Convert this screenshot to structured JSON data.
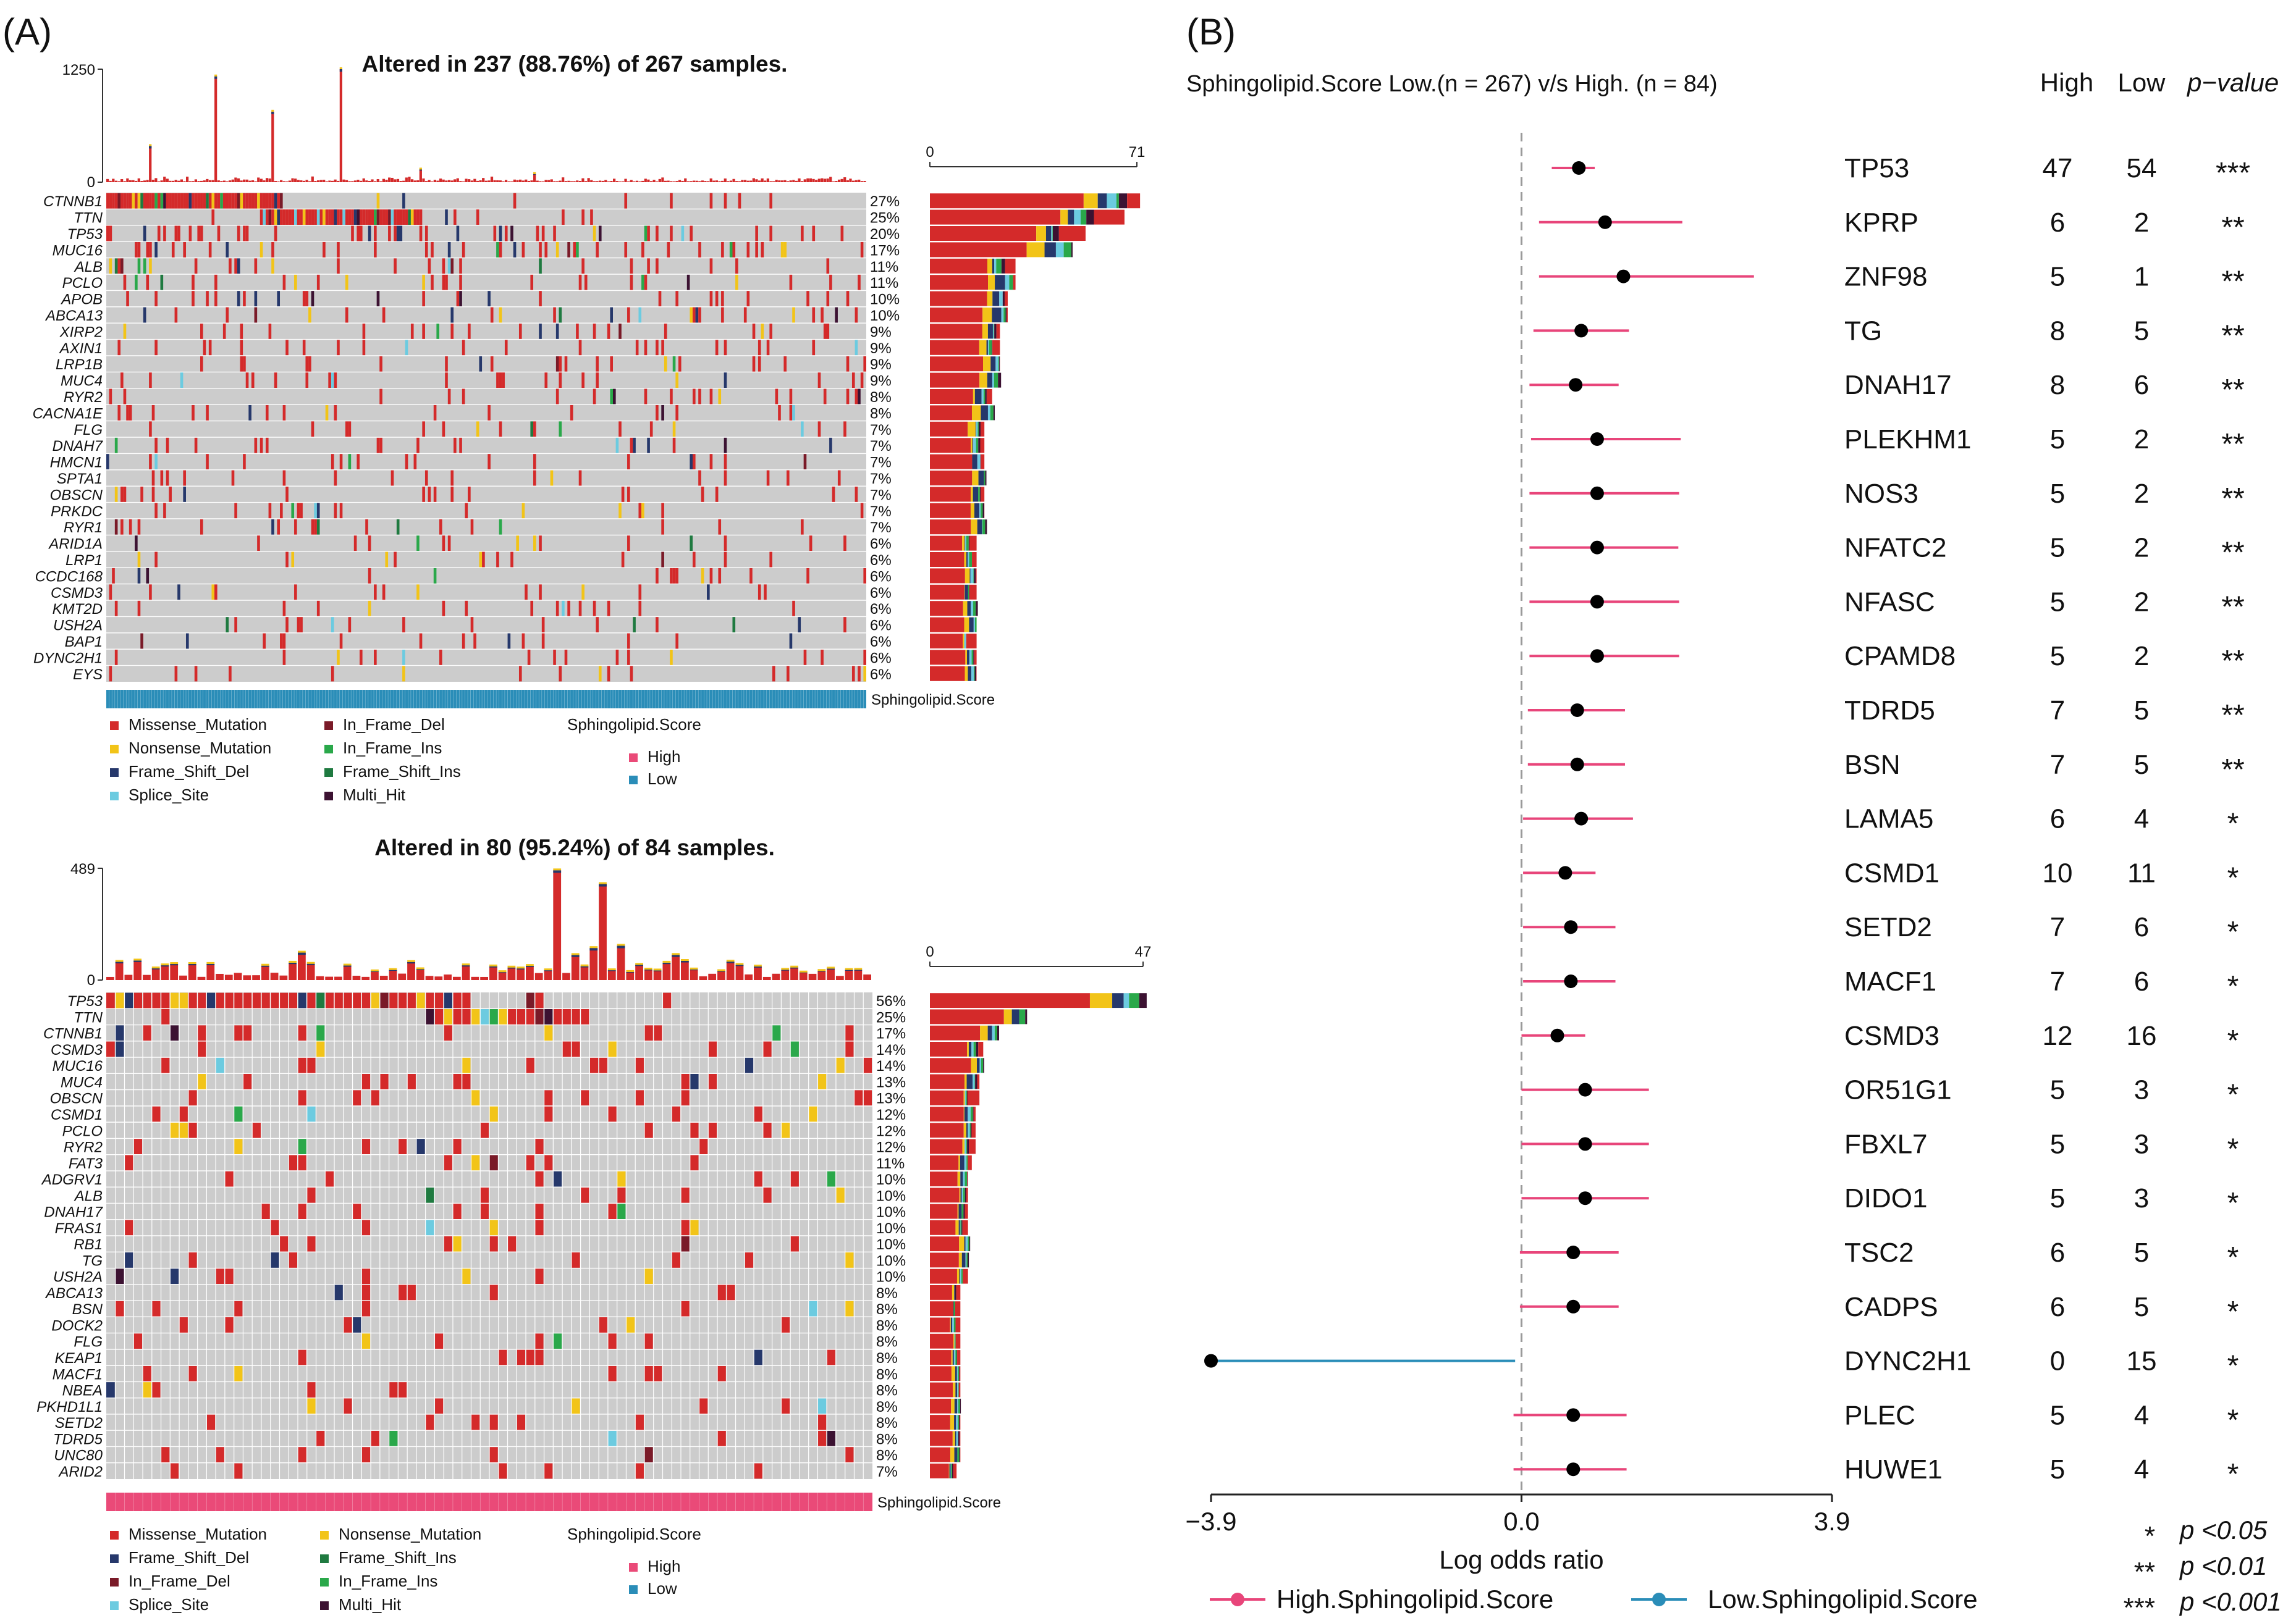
{
  "panel_a": {
    "label": "(A)",
    "colors": {
      "Missense_Mutation": "#d42a2a",
      "Nonsense_Mutation": "#f2c418",
      "Frame_Shift_Del": "#26386b",
      "Splice_Site": "#6ccbe0",
      "In_Frame_Del": "#7a1a28",
      "In_Frame_Ins": "#2aa84a",
      "Frame_Shift_Ins": "#1f7a40",
      "Multi_Hit": "#3c1232",
      "background": "#cccccc",
      "score_high": "#ea4a78",
      "score_low": "#2a8db8"
    },
    "top": {
      "title": "Altered in 237 (88.76%) of 267 samples.",
      "tmb_max": "1250",
      "tmb_min": "0",
      "bar_min": "0",
      "bar_max": "71",
      "annotation_label": "Sphingolipid.Score",
      "annotation_group": "Low",
      "genes": [
        "CTNNB1",
        "TTN",
        "TP53",
        "MUC16",
        "ALB",
        "PCLO",
        "APOB",
        "ABCA13",
        "XIRP2",
        "AXIN1",
        "LRP1B",
        "MUC4",
        "RYR2",
        "CACNA1E",
        "FLG",
        "DNAH7",
        "HMCN1",
        "SPTA1",
        "OBSCN",
        "PRKDC",
        "RYR1",
        "ARID1A",
        "LRP1",
        "CCDC168",
        "CSMD3",
        "KMT2D",
        "USH2A",
        "BAP1",
        "DYNC2H1",
        "EYS"
      ],
      "percents": [
        "27%",
        "25%",
        "20%",
        "17%",
        "11%",
        "11%",
        "10%",
        "10%",
        "9%",
        "9%",
        "9%",
        "9%",
        "8%",
        "8%",
        "7%",
        "7%",
        "7%",
        "7%",
        "7%",
        "7%",
        "7%",
        "6%",
        "6%",
        "6%",
        "6%",
        "6%",
        "6%",
        "6%",
        "6%",
        "6%"
      ],
      "legend": {
        "col1": [
          "Missense_Mutation",
          "Nonsense_Mutation",
          "Frame_Shift_Del",
          "Splice_Site"
        ],
        "col2": [
          "In_Frame_Del",
          "In_Frame_Ins",
          "Frame_Shift_Ins",
          "Multi_Hit"
        ],
        "score_title": "Sphingolipid.Score",
        "score_items": [
          "High",
          "Low"
        ]
      }
    },
    "bottom": {
      "title": "Altered in 80 (95.24%) of 84 samples.",
      "tmb_max": "489",
      "tmb_min": "0",
      "bar_min": "0",
      "bar_max": "47",
      "annotation_label": "Sphingolipid.Score",
      "annotation_group": "High",
      "genes": [
        "TP53",
        "TTN",
        "CTNNB1",
        "CSMD3",
        "MUC16",
        "MUC4",
        "OBSCN",
        "CSMD1",
        "PCLO",
        "RYR2",
        "FAT3",
        "ADGRV1",
        "ALB",
        "DNAH17",
        "FRAS1",
        "RB1",
        "TG",
        "USH2A",
        "ABCA13",
        "BSN",
        "DOCK2",
        "FLG",
        "KEAP1",
        "MACF1",
        "NBEA",
        "PKHD1L1",
        "SETD2",
        "TDRD5",
        "UNC80",
        "ARID2"
      ],
      "percents": [
        "56%",
        "25%",
        "17%",
        "14%",
        "14%",
        "13%",
        "13%",
        "12%",
        "12%",
        "12%",
        "11%",
        "10%",
        "10%",
        "10%",
        "10%",
        "10%",
        "10%",
        "10%",
        "8%",
        "8%",
        "8%",
        "8%",
        "8%",
        "8%",
        "8%",
        "8%",
        "8%",
        "8%",
        "8%",
        "7%"
      ],
      "legend": {
        "col1": [
          "Missense_Mutation",
          "Frame_Shift_Del",
          "In_Frame_Del",
          "Splice_Site"
        ],
        "col2": [
          "Nonsense_Mutation",
          "Frame_Shift_Ins",
          "In_Frame_Ins",
          "Multi_Hit"
        ],
        "score_title": "Sphingolipid.Score",
        "score_items": [
          "High",
          "Low"
        ]
      }
    }
  },
  "panel_b": {
    "label": "(B)",
    "header": "Sphingolipid.Score Low.(n = 267) v/s High. (n = 84)",
    "col_headers": [
      "High",
      "Low",
      "p−value"
    ],
    "colors": {
      "high": "#e8457a",
      "low": "#2a8db8",
      "point": "#000000",
      "zero_line": "#9a9a9a"
    },
    "legend": [
      "High.Sphingolipid.Score",
      "Low.Sphingolipid.Score"
    ],
    "sig_legend": [
      {
        "stars": "*",
        "text": "p <0.05"
      },
      {
        "stars": "**",
        "text": "p <0.01"
      },
      {
        "stars": "***",
        "text": "p <0.001"
      }
    ]
  },
  "chart_data": [
    {
      "type": "heatmap",
      "title": "Altered in 237 (88.76%) of 267 samples.",
      "group": "Sphingolipid.Score Low",
      "samples": 267,
      "altered": 237,
      "genes": [
        "CTNNB1",
        "TTN",
        "TP53",
        "MUC16",
        "ALB",
        "PCLO",
        "APOB",
        "ABCA13",
        "XIRP2",
        "AXIN1",
        "LRP1B",
        "MUC4",
        "RYR2",
        "CACNA1E",
        "FLG",
        "DNAH7",
        "HMCN1",
        "SPTA1",
        "OBSCN",
        "PRKDC",
        "RYR1",
        "ARID1A",
        "LRP1",
        "CCDC168",
        "CSMD3",
        "KMT2D",
        "USH2A",
        "BAP1",
        "DYNC2H1",
        "EYS"
      ],
      "percent_altered": [
        27,
        25,
        20,
        17,
        11,
        11,
        10,
        10,
        9,
        9,
        9,
        9,
        8,
        8,
        7,
        7,
        7,
        7,
        7,
        7,
        7,
        6,
        6,
        6,
        6,
        6,
        6,
        6,
        6,
        6
      ],
      "tmb_ylim": [
        0,
        1250
      ],
      "gene_bar_xlim": [
        0,
        71
      ]
    },
    {
      "type": "heatmap",
      "title": "Altered in 80 (95.24%) of 84 samples.",
      "group": "Sphingolipid.Score High",
      "samples": 84,
      "altered": 80,
      "genes": [
        "TP53",
        "TTN",
        "CTNNB1",
        "CSMD3",
        "MUC16",
        "MUC4",
        "OBSCN",
        "CSMD1",
        "PCLO",
        "RYR2",
        "FAT3",
        "ADGRV1",
        "ALB",
        "DNAH17",
        "FRAS1",
        "RB1",
        "TG",
        "USH2A",
        "ABCA13",
        "BSN",
        "DOCK2",
        "FLG",
        "KEAP1",
        "MACF1",
        "NBEA",
        "PKHD1L1",
        "SETD2",
        "TDRD5",
        "UNC80",
        "ARID2"
      ],
      "percent_altered": [
        56,
        25,
        17,
        14,
        14,
        13,
        13,
        12,
        12,
        12,
        11,
        10,
        10,
        10,
        10,
        10,
        10,
        10,
        8,
        8,
        8,
        8,
        8,
        8,
        8,
        8,
        8,
        8,
        8,
        7
      ],
      "tmb_ylim": [
        0,
        489
      ],
      "gene_bar_xlim": [
        0,
        47
      ]
    },
    {
      "type": "scatter",
      "title": "Sphingolipid.Score Low.(n = 267) v/s High. (n = 84)",
      "xlabel": "Log odds ratio",
      "xlim": [
        -3.9,
        3.9
      ],
      "xticks": [
        "−3.9",
        "0.0",
        "3.9"
      ],
      "rows": [
        {
          "gene": "TP53",
          "or": 0.72,
          "lo": 0.38,
          "hi": 0.92,
          "high": "47",
          "low": "54",
          "sig": "***"
        },
        {
          "gene": "KPRP",
          "or": 1.05,
          "lo": 0.22,
          "hi": 2.02,
          "high": "6",
          "low": "2",
          "sig": "**"
        },
        {
          "gene": "ZNF98",
          "or": 1.28,
          "lo": 0.22,
          "hi": 2.92,
          "high": "5",
          "low": "1",
          "sig": "**"
        },
        {
          "gene": "TG",
          "or": 0.75,
          "lo": 0.15,
          "hi": 1.35,
          "high": "8",
          "low": "5",
          "sig": "**"
        },
        {
          "gene": "DNAH17",
          "or": 0.68,
          "lo": 0.1,
          "hi": 1.22,
          "high": "8",
          "low": "6",
          "sig": "**"
        },
        {
          "gene": "PLEKHM1",
          "or": 0.95,
          "lo": 0.12,
          "hi": 2.0,
          "high": "5",
          "low": "2",
          "sig": "**"
        },
        {
          "gene": "NOS3",
          "or": 0.95,
          "lo": 0.1,
          "hi": 1.98,
          "high": "5",
          "low": "2",
          "sig": "**"
        },
        {
          "gene": "NFATC2",
          "or": 0.95,
          "lo": 0.1,
          "hi": 1.97,
          "high": "5",
          "low": "2",
          "sig": "**"
        },
        {
          "gene": "NFASC",
          "or": 0.95,
          "lo": 0.1,
          "hi": 1.98,
          "high": "5",
          "low": "2",
          "sig": "**"
        },
        {
          "gene": "CPAMD8",
          "or": 0.95,
          "lo": 0.1,
          "hi": 1.98,
          "high": "5",
          "low": "2",
          "sig": "**"
        },
        {
          "gene": "TDRD5",
          "or": 0.7,
          "lo": 0.08,
          "hi": 1.3,
          "high": "7",
          "low": "5",
          "sig": "**"
        },
        {
          "gene": "BSN",
          "or": 0.7,
          "lo": 0.08,
          "hi": 1.3,
          "high": "7",
          "low": "5",
          "sig": "**"
        },
        {
          "gene": "LAMA5",
          "or": 0.75,
          "lo": 0.02,
          "hi": 1.4,
          "high": "6",
          "low": "4",
          "sig": "*"
        },
        {
          "gene": "CSMD1",
          "or": 0.55,
          "lo": 0.02,
          "hi": 0.93,
          "high": "10",
          "low": "11",
          "sig": "*"
        },
        {
          "gene": "SETD2",
          "or": 0.62,
          "lo": 0.02,
          "hi": 1.18,
          "high": "7",
          "low": "6",
          "sig": "*"
        },
        {
          "gene": "MACF1",
          "or": 0.62,
          "lo": 0.02,
          "hi": 1.18,
          "high": "7",
          "low": "6",
          "sig": "*"
        },
        {
          "gene": "CSMD3",
          "or": 0.45,
          "lo": 0.0,
          "hi": 0.8,
          "high": "12",
          "low": "16",
          "sig": "*"
        },
        {
          "gene": "OR51G1",
          "or": 0.8,
          "lo": 0.0,
          "hi": 1.6,
          "high": "5",
          "low": "3",
          "sig": "*"
        },
        {
          "gene": "FBXL7",
          "or": 0.8,
          "lo": 0.0,
          "hi": 1.6,
          "high": "5",
          "low": "3",
          "sig": "*"
        },
        {
          "gene": "DIDO1",
          "or": 0.8,
          "lo": 0.0,
          "hi": 1.6,
          "high": "5",
          "low": "3",
          "sig": "*"
        },
        {
          "gene": "TSC2",
          "or": 0.65,
          "lo": -0.02,
          "hi": 1.22,
          "high": "6",
          "low": "5",
          "sig": "*"
        },
        {
          "gene": "CADPS",
          "or": 0.65,
          "lo": -0.02,
          "hi": 1.22,
          "high": "6",
          "low": "5",
          "sig": "*"
        },
        {
          "gene": "DYNC2H1",
          "or": -3.9,
          "lo": -3.9,
          "hi": -0.08,
          "high": "0",
          "low": "15",
          "sig": "*"
        },
        {
          "gene": "PLEC",
          "or": 0.65,
          "lo": -0.1,
          "hi": 1.32,
          "high": "5",
          "low": "4",
          "sig": "*"
        },
        {
          "gene": "HUWE1",
          "or": 0.65,
          "lo": -0.1,
          "hi": 1.32,
          "high": "5",
          "low": "4",
          "sig": "*"
        }
      ]
    }
  ]
}
